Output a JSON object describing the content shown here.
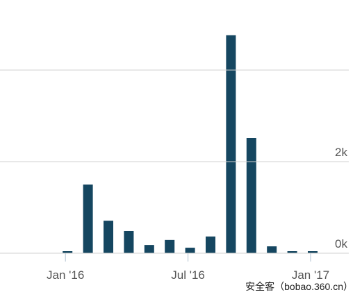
{
  "chart_data": {
    "type": "bar",
    "categories": [
      "Jan '16",
      null,
      null,
      null,
      null,
      null,
      "Jul '16",
      null,
      null,
      null,
      null,
      null,
      "Jan '17"
    ],
    "values": [
      45,
      1500,
      710,
      485,
      180,
      290,
      120,
      365,
      4760,
      2515,
      150,
      45,
      45
    ],
    "color": "#154660",
    "ylim": [
      0,
      5530
    ],
    "yticks": [
      {
        "value": 0,
        "label": "0k"
      },
      {
        "value": 2000,
        "label": "2k"
      },
      {
        "value": 4000,
        "label": null
      }
    ],
    "grid": true,
    "watermark": "安全客（bobao.360.cn）"
  }
}
